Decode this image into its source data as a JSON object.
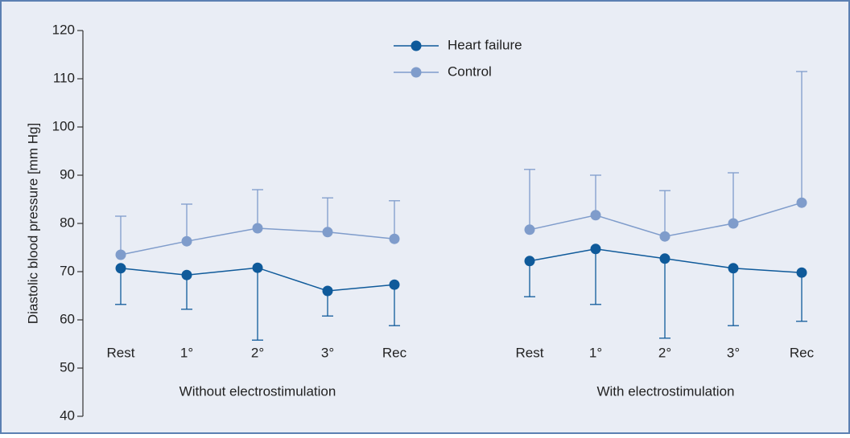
{
  "chart_data": {
    "type": "line",
    "y_label": "Diastolic blood pressure [mm Hg]",
    "ylim": [
      40,
      120
    ],
    "yticks": [
      40,
      50,
      60,
      70,
      80,
      90,
      100,
      110,
      120
    ],
    "legend": "top",
    "groups": [
      {
        "label": "Without electrostimulation",
        "categories": [
          "Rest",
          "1°",
          "2°",
          "3°",
          "Rec"
        ]
      },
      {
        "label": "With electrostimulation",
        "categories": [
          "Rest",
          "1°",
          "2°",
          "3°",
          "Rec"
        ]
      }
    ],
    "series": [
      {
        "name": "Heart failure",
        "color": "#0f5a9a",
        "error_direction": "down",
        "values": [
          [
            70.7,
            69.3,
            70.8,
            66.0,
            67.3
          ],
          [
            72.2,
            74.7,
            72.7,
            70.7,
            69.8
          ]
        ],
        "errors": [
          [
            7.5,
            7.1,
            15.0,
            5.2,
            8.5
          ],
          [
            7.4,
            11.5,
            16.5,
            11.9,
            10.1
          ]
        ]
      },
      {
        "name": "Control",
        "color": "#7f9ccb",
        "error_direction": "up",
        "values": [
          [
            73.5,
            76.3,
            79.0,
            78.2,
            76.8
          ],
          [
            78.7,
            81.7,
            77.3,
            80.0,
            84.3
          ]
        ],
        "errors": [
          [
            8.0,
            7.7,
            8.0,
            7.1,
            7.9
          ],
          [
            12.5,
            8.3,
            9.5,
            10.5,
            27.2
          ]
        ]
      }
    ]
  }
}
